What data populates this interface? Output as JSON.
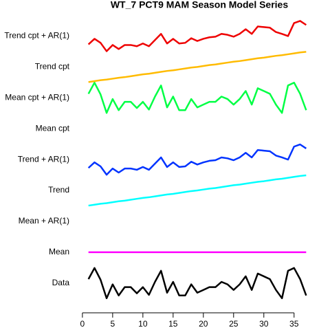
{
  "chart_data": {
    "type": "line",
    "title": "WT_7 PCT9 MAM Season Model Series",
    "x": [
      1,
      2,
      3,
      4,
      5,
      6,
      7,
      8,
      9,
      10,
      11,
      12,
      13,
      14,
      15,
      16,
      17,
      18,
      19,
      20,
      21,
      22,
      23,
      24,
      25,
      26,
      27,
      28,
      29,
      30,
      31,
      32,
      33,
      34,
      35,
      36,
      37
    ],
    "series": [
      {
        "color": "#000000",
        "values": [
          1.13,
          1.49,
          1.11,
          0.51,
          0.96,
          0.6,
          0.87,
          0.87,
          0.67,
          0.87,
          0.62,
          1.04,
          1.4,
          0.69,
          1.04,
          0.6,
          0.6,
          0.96,
          0.69,
          0.78,
          0.87,
          0.87,
          1.04,
          0.96,
          0.78,
          0.96,
          1.22,
          0.78,
          1.31,
          1.22,
          1.13,
          0.78,
          0.51,
          1.4,
          1.49,
          1.13,
          0.6
        ]
      },
      {
        "color": "#ff00ff",
        "values": [
          2,
          2,
          2,
          2,
          2,
          2,
          2,
          2,
          2,
          2,
          2,
          2,
          2,
          2,
          2,
          2,
          2,
          2,
          2,
          2,
          2,
          2,
          2,
          2,
          2,
          2,
          2,
          2,
          2,
          2,
          2,
          2,
          2,
          2,
          2,
          2,
          2
        ]
      },
      {
        "color": "#00ffff",
        "values": [
          3.51,
          3.54,
          3.57,
          3.59,
          3.62,
          3.65,
          3.67,
          3.7,
          3.73,
          3.76,
          3.78,
          3.81,
          3.84,
          3.87,
          3.89,
          3.92,
          3.95,
          3.98,
          4.0,
          4.03,
          4.06,
          4.08,
          4.11,
          4.14,
          4.17,
          4.19,
          4.22,
          4.25,
          4.28,
          4.3,
          4.33,
          4.36,
          4.38,
          4.41,
          4.44,
          4.47,
          4.49
        ]
      },
      {
        "color": "#0033ff",
        "values": [
          4.73,
          4.91,
          4.78,
          4.51,
          4.71,
          4.58,
          4.71,
          4.71,
          4.67,
          4.76,
          4.67,
          4.87,
          5.07,
          4.76,
          4.91,
          4.76,
          4.78,
          4.93,
          4.84,
          4.91,
          4.96,
          4.98,
          5.07,
          5.04,
          4.98,
          5.07,
          5.22,
          5.07,
          5.31,
          5.29,
          5.27,
          5.13,
          5.07,
          5.0,
          5.42,
          5.49,
          5.36
        ]
      },
      {
        "color": "#00ff44",
        "values": [
          7.13,
          7.49,
          7.11,
          6.51,
          6.96,
          6.6,
          6.87,
          6.87,
          6.67,
          6.87,
          6.62,
          7.04,
          7.4,
          6.69,
          7.04,
          6.6,
          6.6,
          6.96,
          6.69,
          6.78,
          6.87,
          6.87,
          7.04,
          6.96,
          6.78,
          6.96,
          7.22,
          6.78,
          7.31,
          7.22,
          7.13,
          6.78,
          6.51,
          7.4,
          7.49,
          7.13,
          6.6
        ]
      },
      {
        "color": "#ffbb00",
        "values": [
          7.51,
          7.54,
          7.57,
          7.59,
          7.62,
          7.65,
          7.67,
          7.7,
          7.73,
          7.76,
          7.78,
          7.81,
          7.84,
          7.87,
          7.89,
          7.92,
          7.95,
          7.98,
          8.0,
          8.03,
          8.06,
          8.08,
          8.11,
          8.14,
          8.17,
          8.19,
          8.22,
          8.25,
          8.28,
          8.3,
          8.33,
          8.36,
          8.38,
          8.41,
          8.44,
          8.47,
          8.49
        ]
      },
      {
        "color": "#ee0000",
        "values": [
          8.73,
          8.91,
          8.78,
          8.51,
          8.71,
          8.58,
          8.71,
          8.71,
          8.67,
          8.76,
          8.67,
          8.87,
          9.07,
          8.76,
          8.91,
          8.76,
          8.78,
          8.93,
          8.84,
          8.91,
          8.96,
          8.98,
          9.07,
          9.04,
          8.98,
          9.07,
          9.22,
          9.07,
          9.31,
          9.29,
          9.27,
          9.13,
          9.07,
          9.0,
          9.42,
          9.49,
          9.36
        ]
      }
    ],
    "xlim": [
      -0.44,
      38.44
    ],
    "xticks": [
      0,
      5,
      10,
      15,
      20,
      25,
      30,
      35
    ],
    "ylim": [
      0.15,
      9.9
    ],
    "yticks": [
      {
        "value": 1,
        "label": "Data"
      },
      {
        "value": 2,
        "label": "Mean"
      },
      {
        "value": 3,
        "label": "Mean + AR(1)"
      },
      {
        "value": 4,
        "label": "Trend"
      },
      {
        "value": 5,
        "label": "Trend + AR(1)"
      },
      {
        "value": 6,
        "label": "Mean cpt"
      },
      {
        "value": 7,
        "label": "Mean cpt + AR(1)"
      },
      {
        "value": 8,
        "label": "Trend cpt"
      },
      {
        "value": 9,
        "label": "Trend cpt + AR(1)"
      }
    ]
  }
}
